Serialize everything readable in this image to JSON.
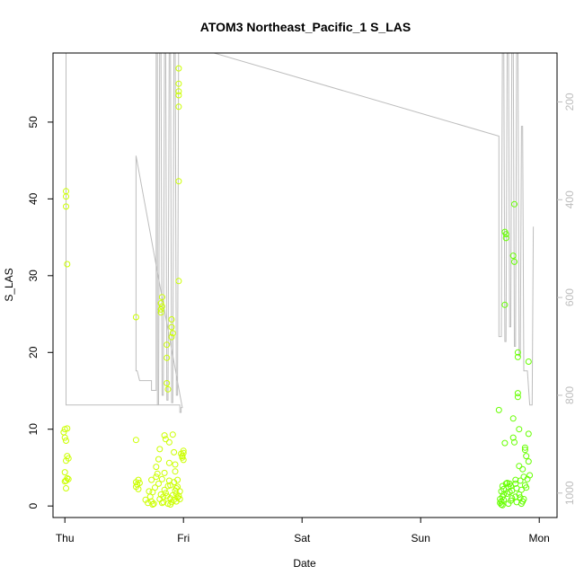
{
  "chart_data": {
    "type": "scatter",
    "title": "ATOM3 Northeast_Pacific_1 S_LAS",
    "xlabel": "Date",
    "ylabel": "S_LAS",
    "x_ticks": [
      "Thu",
      "Fri",
      "Sat",
      "Sun",
      "Mon"
    ],
    "y_ticks": [
      "0",
      "10",
      "20",
      "30",
      "40",
      "50"
    ],
    "y_range": [
      -1.5,
      59
    ],
    "y_right_ticks": [
      "200",
      "400",
      "600",
      "800",
      "1000"
    ],
    "y_right_range": [
      100,
      1050
    ],
    "y_right_reversed": true,
    "x_range_days": [
      -0.1,
      4.15
    ],
    "colors": {
      "early": "#ccff00",
      "late": "#66ff00",
      "line": "#bdbdbd",
      "frame": "#000000"
    },
    "series": [
      {
        "points": [
          [
            0.01,
            41.0
          ],
          [
            0.01,
            40.3
          ],
          [
            0.01,
            39.0
          ],
          [
            0.02,
            31.5
          ],
          [
            0.0,
            10.0
          ],
          [
            0.02,
            10.1
          ],
          [
            -0.01,
            9.6
          ],
          [
            0.0,
            8.9
          ],
          [
            0.01,
            8.5
          ],
          [
            0.02,
            6.5
          ],
          [
            0.01,
            5.9
          ],
          [
            0.03,
            6.2
          ],
          [
            0.0,
            4.4
          ],
          [
            0.02,
            3.6
          ],
          [
            0.01,
            3.3
          ],
          [
            0.0,
            3.2
          ],
          [
            0.03,
            3.5
          ],
          [
            0.01,
            2.3
          ],
          [
            0.6,
            24.6
          ],
          [
            0.6,
            8.6
          ],
          [
            0.62,
            3.4
          ],
          [
            0.6,
            3.1
          ],
          [
            0.61,
            2.8
          ],
          [
            0.6,
            2.5
          ],
          [
            0.62,
            2.2
          ],
          [
            0.63,
            3.0
          ],
          [
            0.68,
            0.8
          ],
          [
            0.7,
            0.4
          ],
          [
            0.72,
            1.2
          ],
          [
            0.73,
            0.6
          ],
          [
            0.74,
            1.8
          ],
          [
            0.75,
            0.3
          ],
          [
            0.76,
            2.4
          ],
          [
            0.77,
            3.8
          ],
          [
            0.78,
            4.2
          ],
          [
            0.79,
            2.9
          ],
          [
            0.8,
            7.4
          ],
          [
            0.8,
            0.9
          ],
          [
            0.81,
            1.5
          ],
          [
            0.81,
            25.6
          ],
          [
            0.81,
            25.2
          ],
          [
            0.81,
            26.4
          ],
          [
            0.82,
            26.0
          ],
          [
            0.82,
            27.2
          ],
          [
            0.82,
            3.5
          ],
          [
            0.83,
            1.2
          ],
          [
            0.83,
            0.5
          ],
          [
            0.84,
            2.1
          ],
          [
            0.84,
            4.3
          ],
          [
            0.85,
            1.7
          ],
          [
            0.85,
            8.7
          ],
          [
            0.86,
            21.0
          ],
          [
            0.86,
            19.3
          ],
          [
            0.86,
            16.0
          ],
          [
            0.87,
            15.2
          ],
          [
            0.87,
            0.3
          ],
          [
            0.87,
            2.6
          ],
          [
            0.88,
            5.6
          ],
          [
            0.88,
            3.3
          ],
          [
            0.89,
            0.2
          ],
          [
            0.89,
            1.0
          ],
          [
            0.9,
            22.0
          ],
          [
            0.9,
            24.3
          ],
          [
            0.9,
            23.3
          ],
          [
            0.91,
            22.5
          ],
          [
            0.91,
            9.3
          ],
          [
            0.91,
            1.4
          ],
          [
            0.92,
            0.8
          ],
          [
            0.92,
            3.1
          ],
          [
            0.93,
            2.0
          ],
          [
            0.93,
            4.5
          ],
          [
            0.94,
            0.6
          ],
          [
            0.94,
            1.6
          ],
          [
            0.95,
            1.1
          ],
          [
            0.95,
            3.4
          ],
          [
            0.96,
            57.0
          ],
          [
            0.96,
            55.0
          ],
          [
            0.96,
            54.0
          ],
          [
            0.96,
            53.5
          ],
          [
            0.96,
            52.0
          ],
          [
            0.96,
            42.3
          ],
          [
            0.96,
            29.3
          ],
          [
            0.96,
            1.3
          ],
          [
            0.97,
            0.9
          ],
          [
            0.98,
            6.8
          ],
          [
            0.99,
            6.5
          ],
          [
            0.99,
            6.3
          ],
          [
            1.0,
            7.2
          ],
          [
            1.0,
            6.9
          ],
          [
            1.0,
            6.0
          ],
          [
            0.84,
            9.2
          ],
          [
            0.88,
            8.3
          ],
          [
            0.79,
            6.1
          ],
          [
            0.77,
            5.1
          ],
          [
            0.73,
            3.4
          ],
          [
            0.92,
            7.0
          ],
          [
            0.93,
            5.4
          ],
          [
            0.95,
            2.5
          ],
          [
            0.71,
            1.9
          ],
          [
            0.74,
            0.2
          ],
          [
            0.82,
            0.4
          ],
          [
            0.86,
            1.3
          ],
          [
            0.89,
            2.7
          ],
          [
            0.9,
            0.5
          ],
          [
            0.94,
            2.3
          ],
          [
            0.97,
            1.9
          ]
        ]
      },
      {
        "points": [
          [
            3.66,
            12.5
          ],
          [
            3.67,
            0.9
          ],
          [
            3.67,
            0.4
          ],
          [
            3.68,
            0.2
          ],
          [
            3.68,
            0.6
          ],
          [
            3.69,
            1.2
          ],
          [
            3.69,
            0.1
          ],
          [
            3.7,
            0.8
          ],
          [
            3.7,
            2.2
          ],
          [
            3.71,
            35.7
          ],
          [
            3.72,
            35.4
          ],
          [
            3.72,
            34.9
          ],
          [
            3.71,
            26.2
          ],
          [
            3.71,
            8.2
          ],
          [
            3.72,
            2.9
          ],
          [
            3.73,
            1.6
          ],
          [
            3.74,
            0.3
          ],
          [
            3.74,
            2.5
          ],
          [
            3.75,
            1.8
          ],
          [
            3.76,
            2.6
          ],
          [
            3.76,
            0.7
          ],
          [
            3.77,
            2.0
          ],
          [
            3.78,
            11.4
          ],
          [
            3.78,
            8.9
          ],
          [
            3.78,
            32.6
          ],
          [
            3.79,
            31.8
          ],
          [
            3.79,
            39.3
          ],
          [
            3.79,
            8.3
          ],
          [
            3.8,
            2.9
          ],
          [
            3.8,
            1.2
          ],
          [
            3.81,
            2.3
          ],
          [
            3.81,
            0.5
          ],
          [
            3.82,
            20.0
          ],
          [
            3.82,
            19.4
          ],
          [
            3.82,
            14.7
          ],
          [
            3.82,
            14.2
          ],
          [
            3.83,
            10.0
          ],
          [
            3.83,
            5.2
          ],
          [
            3.84,
            1.1
          ],
          [
            3.84,
            3.3
          ],
          [
            3.85,
            2.1
          ],
          [
            3.86,
            4.8
          ],
          [
            3.86,
            0.6
          ],
          [
            3.87,
            3.8
          ],
          [
            3.88,
            7.3
          ],
          [
            3.88,
            7.6
          ],
          [
            3.89,
            6.5
          ],
          [
            3.89,
            2.4
          ],
          [
            3.9,
            3.5
          ],
          [
            3.91,
            18.8
          ],
          [
            3.91,
            9.4
          ],
          [
            3.91,
            5.8
          ],
          [
            3.92,
            4.0
          ],
          [
            3.88,
            2.7
          ],
          [
            3.85,
            0.3
          ],
          [
            3.83,
            1.5
          ],
          [
            3.77,
            1.0
          ],
          [
            3.75,
            2.9
          ],
          [
            3.73,
            3.0
          ],
          [
            3.7,
            1.5
          ],
          [
            3.69,
            2.6
          ],
          [
            3.68,
            1.9
          ],
          [
            3.8,
            3.4
          ],
          [
            3.87,
            0.9
          ]
        ]
      }
    ],
    "depth_line": [
      [
        0.01,
        5
      ],
      [
        0.01,
        820
      ],
      [
        0.72,
        820
      ],
      [
        0.97,
        820
      ],
      [
        0.97,
        835
      ],
      [
        0.98,
        835
      ],
      [
        0.98,
        825
      ],
      [
        0.99,
        825
      ],
      [
        0.6,
        310
      ],
      [
        0.6,
        750
      ],
      [
        0.61,
        750
      ],
      [
        0.63,
        770
      ],
      [
        0.73,
        770
      ],
      [
        0.73,
        790
      ],
      [
        0.77,
        790
      ],
      [
        0.77,
        30
      ],
      [
        0.78,
        30
      ],
      [
        0.78,
        820
      ],
      [
        0.79,
        820
      ],
      [
        0.8,
        40
      ],
      [
        0.81,
        40
      ],
      [
        0.82,
        800
      ],
      [
        0.83,
        800
      ],
      [
        0.84,
        80
      ],
      [
        0.85,
        80
      ],
      [
        0.86,
        810
      ],
      [
        0.87,
        810
      ],
      [
        0.88,
        60
      ],
      [
        0.89,
        60
      ],
      [
        0.9,
        815
      ],
      [
        0.91,
        815
      ],
      [
        0.92,
        70
      ],
      [
        0.93,
        70
      ],
      [
        0.94,
        800
      ],
      [
        0.95,
        800
      ],
      [
        0.96,
        20
      ],
      [
        0.96,
        -10
      ],
      [
        1.02,
        50
      ],
      [
        1.2,
        96
      ],
      [
        3.66,
        270
      ],
      [
        3.66,
        680
      ],
      [
        3.68,
        680
      ],
      [
        3.69,
        30
      ],
      [
        3.7,
        30
      ],
      [
        3.71,
        690
      ],
      [
        3.72,
        690
      ],
      [
        3.73,
        40
      ],
      [
        3.74,
        40
      ],
      [
        3.75,
        660
      ],
      [
        3.76,
        660
      ],
      [
        3.77,
        35
      ],
      [
        3.78,
        35
      ],
      [
        3.79,
        700
      ],
      [
        3.8,
        700
      ],
      [
        3.81,
        50
      ],
      [
        3.82,
        50
      ],
      [
        3.83,
        720
      ],
      [
        3.84,
        720
      ],
      [
        3.85,
        250
      ],
      [
        3.86,
        250
      ],
      [
        3.87,
        750
      ],
      [
        3.9,
        750
      ],
      [
        3.92,
        820
      ],
      [
        3.94,
        820
      ],
      [
        3.95,
        455
      ],
      [
        3.95,
        455
      ]
    ]
  }
}
